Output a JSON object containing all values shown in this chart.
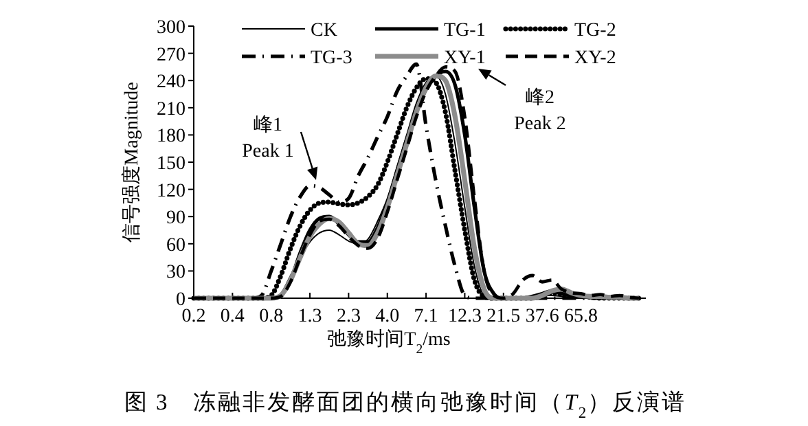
{
  "chart_data": {
    "type": "line",
    "title": "图 3　冻融非发酵面团的横向弛豫时间（*T*$_{2}$）反演谱",
    "xlabel": "弛豫时间T$_{2}$/ms",
    "ylabel": "信号强度Magnitude",
    "categories": [
      "0.2",
      null,
      null,
      null,
      "0.4",
      null,
      null,
      null,
      "0.8",
      null,
      null,
      null,
      "1.3",
      null,
      null,
      null,
      "2.3",
      null,
      null,
      null,
      "4.0",
      null,
      null,
      null,
      "7.1",
      null,
      null,
      null,
      "12.3",
      null,
      null,
      null,
      "21.5",
      null,
      null,
      null,
      "37.6",
      null,
      null,
      null,
      "65.8",
      null,
      null,
      null,
      null,
      null,
      null
    ],
    "ylim": [
      0,
      300
    ],
    "yticks": [
      0,
      30,
      60,
      90,
      120,
      150,
      180,
      210,
      240,
      270,
      300
    ],
    "grid": false,
    "legend": "top",
    "annotations": [
      "峰1",
      "Peak 1",
      "峰2",
      "Peak 2"
    ],
    "series": [
      {
        "name": "CK",
        "color": "#000000",
        "line_style": "solid",
        "values": [
          0,
          0,
          0,
          0,
          0,
          0,
          0,
          0,
          0,
          5,
          25,
          45,
          62,
          72,
          75,
          70,
          63,
          60,
          65,
          85,
          110,
          145,
          180,
          215,
          238,
          245,
          225,
          170,
          100,
          35,
          3,
          0,
          0,
          0,
          0,
          2,
          3,
          3,
          2,
          1,
          1,
          0,
          0,
          0,
          0,
          0,
          0
        ]
      },
      {
        "name": "TG-1",
        "color": "#000000",
        "line_style": "solid",
        "values": [
          0,
          0,
          0,
          0,
          0,
          0,
          0,
          0,
          0,
          3,
          20,
          50,
          75,
          88,
          90,
          82,
          70,
          62,
          62,
          78,
          105,
          140,
          175,
          205,
          230,
          245,
          250,
          235,
          180,
          100,
          30,
          5,
          0,
          0,
          0,
          2,
          5,
          8,
          5,
          3,
          2,
          1,
          1,
          0,
          0,
          0,
          0
        ]
      },
      {
        "name": "TG-2",
        "color": "#000000",
        "line_style": "dotted",
        "values": [
          0,
          0,
          0,
          0,
          0,
          0,
          0,
          0,
          3,
          25,
          55,
          80,
          97,
          105,
          106,
          104,
          103,
          105,
          112,
          125,
          150,
          180,
          210,
          232,
          242,
          238,
          205,
          140,
          75,
          20,
          2,
          0,
          0,
          0,
          0,
          0,
          3,
          6,
          5,
          3,
          2,
          1,
          0,
          0,
          0,
          0,
          0
        ]
      },
      {
        "name": "TG-3",
        "color": "#000000",
        "line_style": "dashdot",
        "values": [
          0,
          0,
          0,
          0,
          0,
          0,
          0,
          3,
          30,
          60,
          90,
          112,
          124,
          122,
          114,
          106,
          110,
          135,
          155,
          178,
          200,
          228,
          245,
          258,
          190,
          130,
          80,
          35,
          3,
          0,
          0,
          0,
          0,
          0,
          0,
          0,
          0,
          0,
          0,
          0,
          0,
          0,
          0,
          0,
          0,
          0,
          0
        ]
      },
      {
        "name": "XY-1",
        "color": "#8c8c8c",
        "line_style": "solid",
        "values": [
          0,
          0,
          0,
          0,
          0,
          0,
          0,
          0,
          0,
          3,
          20,
          45,
          68,
          82,
          88,
          84,
          72,
          60,
          58,
          72,
          100,
          135,
          170,
          205,
          232,
          245,
          240,
          200,
          130,
          55,
          10,
          0,
          0,
          0,
          0,
          0,
          3,
          8,
          10,
          6,
          3,
          2,
          2,
          1,
          1,
          0,
          0
        ]
      },
      {
        "name": "XY-2",
        "color": "#000000",
        "line_style": "dashed",
        "values": [
          0,
          0,
          0,
          0,
          0,
          0,
          0,
          0,
          0,
          2,
          18,
          45,
          70,
          85,
          87,
          80,
          68,
          58,
          55,
          66,
          95,
          130,
          165,
          200,
          228,
          245,
          255,
          250,
          200,
          110,
          30,
          3,
          0,
          5,
          20,
          25,
          18,
          20,
          10,
          6,
          5,
          3,
          4,
          2,
          3,
          1,
          0
        ]
      }
    ]
  }
}
